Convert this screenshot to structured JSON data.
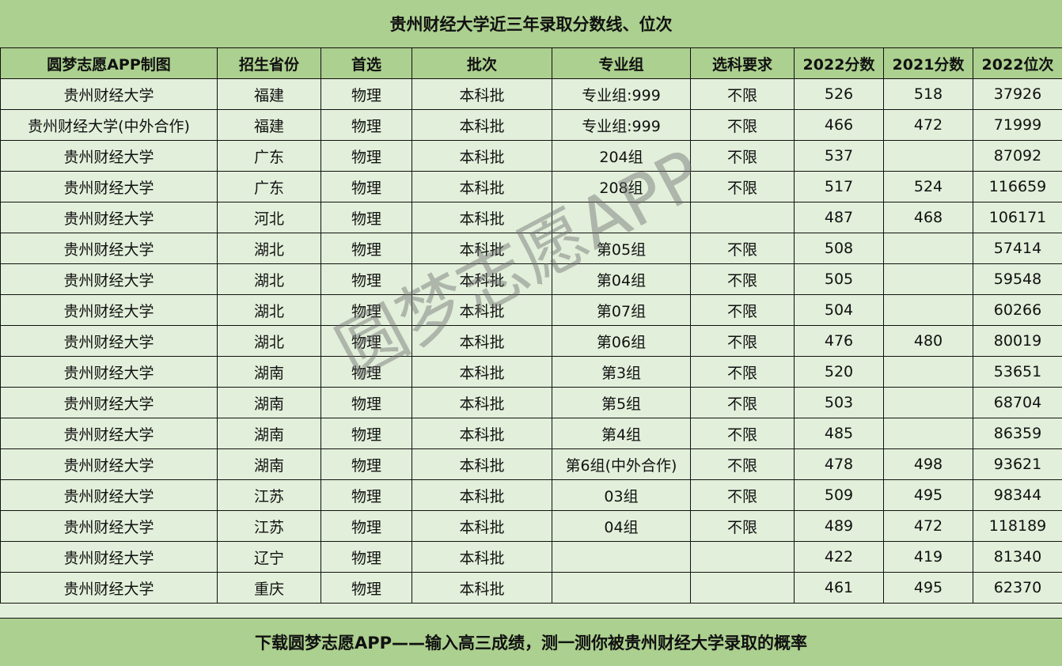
{
  "title": "贵州财经大学近三年录取分数线、位次",
  "headers": [
    "圆梦志愿APP制图",
    "招生省份",
    "首选",
    "批次",
    "专业组",
    "选科要求",
    "2022分数",
    "2021分数",
    "2022位次"
  ],
  "rows": [
    [
      "贵州财经大学",
      "福建",
      "物理",
      "本科批",
      "专业组:999",
      "不限",
      "526",
      "518",
      "37926"
    ],
    [
      "贵州财经大学(中外合作)",
      "福建",
      "物理",
      "本科批",
      "专业组:999",
      "不限",
      "466",
      "472",
      "71999"
    ],
    [
      "贵州财经大学",
      "广东",
      "物理",
      "本科批",
      "204组",
      "不限",
      "537",
      "",
      "87092"
    ],
    [
      "贵州财经大学",
      "广东",
      "物理",
      "本科批",
      "208组",
      "不限",
      "517",
      "524",
      "116659"
    ],
    [
      "贵州财经大学",
      "河北",
      "物理",
      "本科批",
      "",
      "",
      "487",
      "468",
      "106171"
    ],
    [
      "贵州财经大学",
      "湖北",
      "物理",
      "本科批",
      "第05组",
      "不限",
      "508",
      "",
      "57414"
    ],
    [
      "贵州财经大学",
      "湖北",
      "物理",
      "本科批",
      "第04组",
      "不限",
      "505",
      "",
      "59548"
    ],
    [
      "贵州财经大学",
      "湖北",
      "物理",
      "本科批",
      "第07组",
      "不限",
      "504",
      "",
      "60266"
    ],
    [
      "贵州财经大学",
      "湖北",
      "物理",
      "本科批",
      "第06组",
      "不限",
      "476",
      "480",
      "80019"
    ],
    [
      "贵州财经大学",
      "湖南",
      "物理",
      "本科批",
      "第3组",
      "不限",
      "520",
      "",
      "53651"
    ],
    [
      "贵州财经大学",
      "湖南",
      "物理",
      "本科批",
      "第5组",
      "不限",
      "503",
      "",
      "68704"
    ],
    [
      "贵州财经大学",
      "湖南",
      "物理",
      "本科批",
      "第4组",
      "不限",
      "485",
      "",
      "86359"
    ],
    [
      "贵州财经大学",
      "湖南",
      "物理",
      "本科批",
      "第6组(中外合作)",
      "不限",
      "478",
      "498",
      "93621"
    ],
    [
      "贵州财经大学",
      "江苏",
      "物理",
      "本科批",
      "03组",
      "不限",
      "509",
      "495",
      "98344"
    ],
    [
      "贵州财经大学",
      "江苏",
      "物理",
      "本科批",
      "04组",
      "不限",
      "489",
      "472",
      "118189"
    ],
    [
      "贵州财经大学",
      "辽宁",
      "物理",
      "本科批",
      "",
      "",
      "422",
      "419",
      "81340"
    ],
    [
      "贵州财经大学",
      "重庆",
      "物理",
      "本科批",
      "",
      "",
      "461",
      "495",
      "62370"
    ]
  ],
  "footer": "下载圆梦志愿APP——输入高三成绩，测一测你被贵州财经大学录取的概率",
  "watermark": "圆梦志愿APP",
  "colors": {
    "header_bg": "#acd08f",
    "row_bg": "#e2efda"
  }
}
